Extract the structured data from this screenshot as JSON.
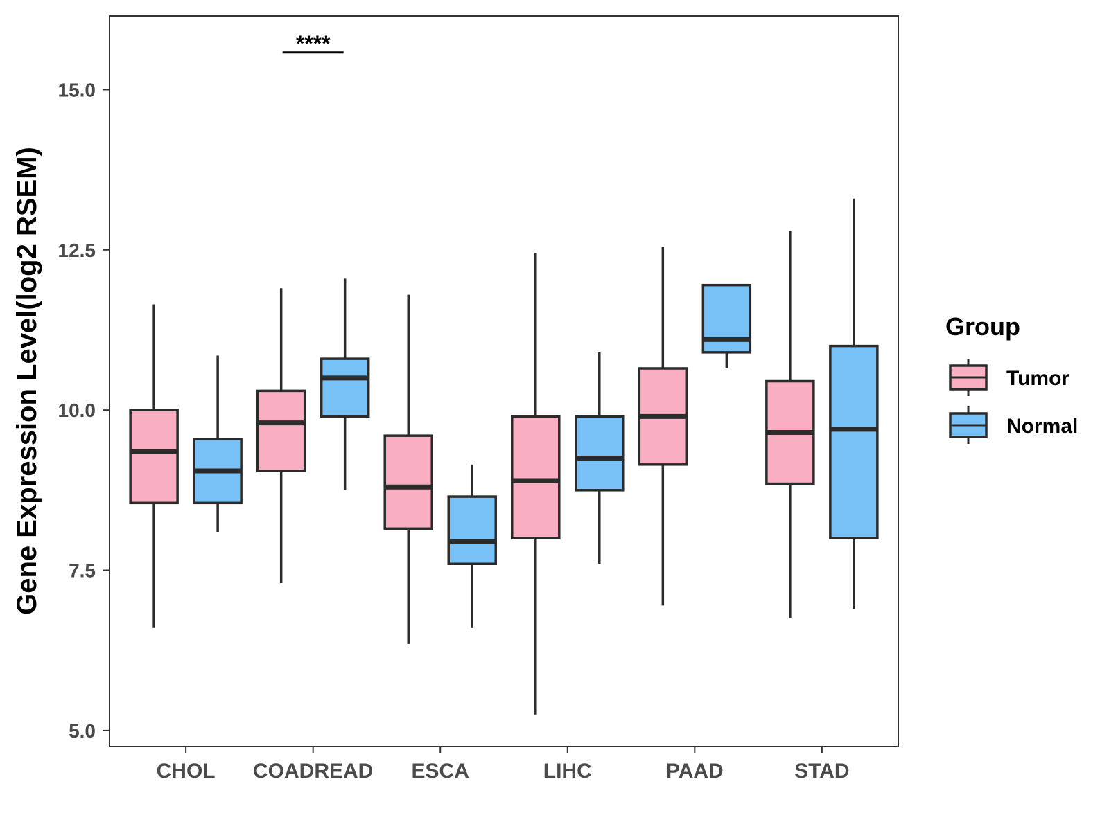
{
  "chart_data": {
    "type": "boxplot",
    "title": "",
    "xlabel": "",
    "ylabel": "Gene Expression Level(log2 RSEM)",
    "ylim": [
      4.75,
      16.15
    ],
    "yticks": [
      5.0,
      7.5,
      10.0,
      12.5,
      15.0
    ],
    "ytick_labels": [
      "5.0",
      "7.5",
      "10.0",
      "12.5",
      "15.0"
    ],
    "grid": false,
    "categories": [
      "CHOL",
      "COADREAD",
      "ESCA",
      "LIHC",
      "PAAD",
      "STAD"
    ],
    "series": [
      {
        "name": "Tumor",
        "color": "#f9afc1",
        "boxes": [
          {
            "min": 6.6,
            "q1": 8.55,
            "median": 9.35,
            "q3": 10.0,
            "max": 11.65
          },
          {
            "min": 7.3,
            "q1": 9.05,
            "median": 9.8,
            "q3": 10.3,
            "max": 11.9
          },
          {
            "min": 6.35,
            "q1": 8.15,
            "median": 8.8,
            "q3": 9.6,
            "max": 11.8
          },
          {
            "min": 5.25,
            "q1": 8.0,
            "median": 8.9,
            "q3": 9.9,
            "max": 12.45
          },
          {
            "min": 6.95,
            "q1": 9.15,
            "median": 9.9,
            "q3": 10.65,
            "max": 12.55
          },
          {
            "min": 6.75,
            "q1": 8.85,
            "median": 9.65,
            "q3": 10.45,
            "max": 12.8
          }
        ]
      },
      {
        "name": "Normal",
        "color": "#78c1f7",
        "boxes": [
          {
            "min": 8.1,
            "q1": 8.55,
            "median": 9.05,
            "q3": 9.55,
            "max": 10.85
          },
          {
            "min": 8.75,
            "q1": 9.9,
            "median": 10.5,
            "q3": 10.8,
            "max": 12.05
          },
          {
            "min": 6.6,
            "q1": 7.6,
            "median": 7.95,
            "q3": 8.65,
            "max": 9.15
          },
          {
            "min": 7.6,
            "q1": 8.75,
            "median": 9.25,
            "q3": 9.9,
            "max": 10.9
          },
          {
            "min": 10.65,
            "q1": 10.9,
            "median": 11.1,
            "q3": 11.95,
            "max": 11.95
          },
          {
            "min": 6.9,
            "q1": 8.0,
            "median": 9.7,
            "q3": 11.0,
            "max": 13.3
          }
        ]
      }
    ],
    "annotations": [
      {
        "text": "****",
        "category": "COADREAD",
        "y": 15.58
      }
    ],
    "legend": {
      "title": "Group",
      "entries": [
        "Tumor",
        "Normal"
      ],
      "position": "right"
    }
  }
}
